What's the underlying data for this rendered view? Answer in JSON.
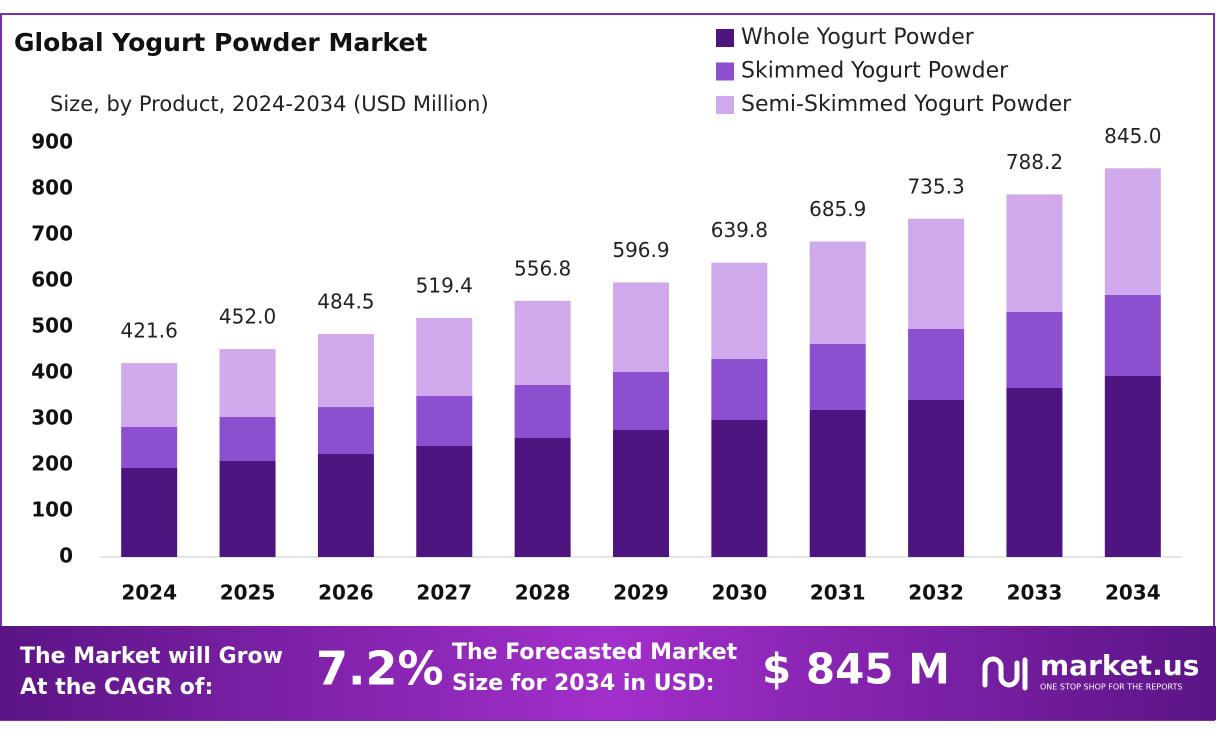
{
  "chart_data": {
    "type": "stacked-bar",
    "title": "Global Yogurt Powder Market",
    "subtitle": "Size, by Product, 2024-2034 (USD Million)",
    "categories": [
      "2024",
      "2025",
      "2026",
      "2027",
      "2028",
      "2029",
      "2030",
      "2031",
      "2032",
      "2033",
      "2034"
    ],
    "series": [
      {
        "name": "Whole Yogurt Powder",
        "color": "#4e1580",
        "values": [
          193.5,
          208.7,
          223.9,
          241.3,
          258.7,
          276.1,
          297.8,
          319.6,
          341.3,
          367.4,
          393.5
        ]
      },
      {
        "name": "Skimmed Yogurt Powder",
        "color": "#8b4fcf",
        "values": [
          89.1,
          95.6,
          102.1,
          108.7,
          115.2,
          126.1,
          132.6,
          143.4,
          154.4,
          165.2,
          176.1
        ]
      },
      {
        "name": "Semi-Skimmed Yogurt Powder",
        "color": "#d0a8ec",
        "values": [
          139,
          147.7,
          158.5,
          169.4,
          182.9,
          194.7,
          209.4,
          222.9,
          239.6,
          255.6,
          275.4
        ]
      }
    ],
    "totals": {
      "values": [
        421.6,
        452,
        484.5,
        519.4,
        556.8,
        596.9,
        639.8,
        685.9,
        735.3,
        788.2,
        845
      ],
      "value_labels": [
        "421.6",
        "452.0",
        "484.5",
        "519.4",
        "556.8",
        "596.9",
        "639.8",
        "685.9",
        "735.3",
        "788.2",
        "845.0"
      ]
    },
    "ylim": [
      0,
      900
    ],
    "yticks": [
      0,
      100,
      200,
      300,
      400,
      500,
      600,
      700,
      800,
      900
    ],
    "grid": false,
    "legend": "top-right"
  },
  "footer": {
    "cagr_text_1": "The Market will Grow",
    "cagr_text_2": "At the CAGR of:",
    "cagr": "7.2%",
    "forecast_text_1": "The Forecasted Market",
    "forecast_text_2": "Size for 2034 in USD:",
    "forecast": "$ 845 M",
    "brand": "market.us",
    "tagline": "ONE STOP SHOP FOR THE REPORTS"
  }
}
